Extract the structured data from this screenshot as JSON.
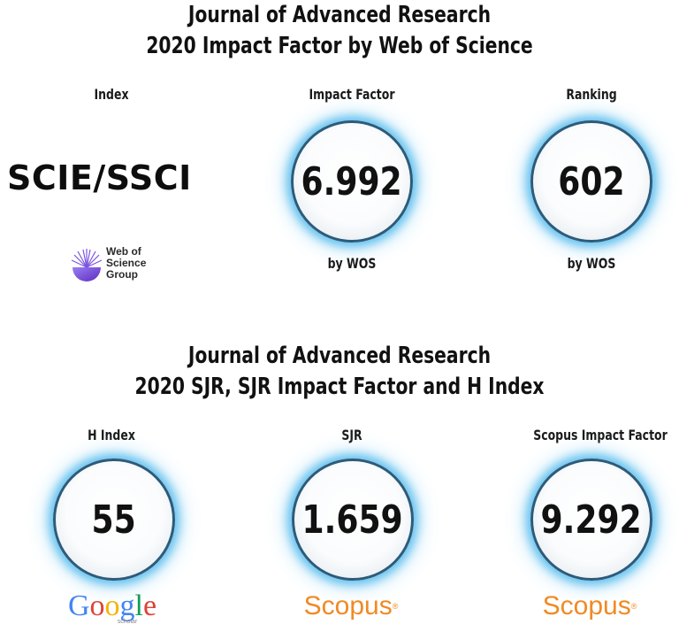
{
  "section1": {
    "title_line1": "Journal of Advanced Research",
    "title_line2": "2020 Impact Factor by Web of Science",
    "index_label": "Index",
    "index_value": "SCIE/SSCI",
    "logo": {
      "icon": "web-of-science-sphere-icon",
      "line1": "Web of",
      "line2": "Science",
      "line3": "Group",
      "color": "#6a3fc8"
    },
    "impact_factor": {
      "label": "Impact Factor",
      "value": "6.992",
      "caption": "by WOS"
    },
    "ranking": {
      "label": "Ranking",
      "value": "602",
      "caption": "by WOS"
    }
  },
  "section2": {
    "title_line1": "Journal of Advanced Research",
    "title_line2": "2020 SJR, SJR Impact Factor and H Index",
    "h_index": {
      "label": "H Index",
      "value": "55",
      "logo_text": "Google",
      "logo_subtext": "scholar"
    },
    "sjr": {
      "label": "SJR",
      "value": "1.659",
      "logo_text": "Scopus"
    },
    "scopus_if": {
      "label": "Scopus Impact Factor",
      "value": "9.292",
      "logo_text": "Scopus"
    }
  },
  "colors": {
    "circle_border": "#2d5b7a",
    "circle_glow": "#46b4eb",
    "scopus_orange": "#f08a24",
    "google_blue": "#4285f4",
    "google_red": "#db4437",
    "google_yellow": "#f4b400",
    "google_green": "#0f9d58"
  }
}
